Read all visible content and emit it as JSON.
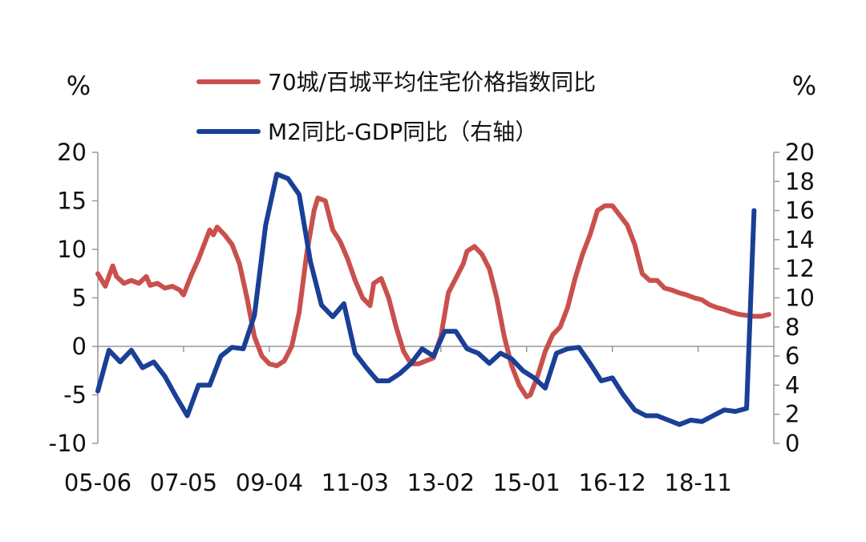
{
  "chart_data": {
    "type": "line",
    "left_unit": "%",
    "right_unit": "%",
    "x_tick_labels": [
      "05-06",
      "07-05",
      "09-04",
      "11-03",
      "13-02",
      "15-01",
      "16-12",
      "18-11"
    ],
    "x_tick_index": [
      0,
      23,
      46,
      69,
      92,
      115,
      138,
      161
    ],
    "y_left": {
      "min": -10,
      "max": 20,
      "ticks": [
        "20",
        "15",
        "10",
        "5",
        "0",
        "-5",
        "-10"
      ],
      "tick_values": [
        20,
        15,
        10,
        5,
        0,
        -5,
        -10
      ]
    },
    "y_right": {
      "min": 0,
      "max": 20,
      "ticks": [
        "20",
        "18",
        "16",
        "14",
        "12",
        "10",
        "8",
        "6",
        "4",
        "2",
        "0"
      ],
      "tick_values": [
        20,
        18,
        16,
        14,
        12,
        10,
        8,
        6,
        4,
        2,
        0
      ]
    },
    "legend_placement": "top-center",
    "series": [
      {
        "name": "70城/百城平均住宅价格指数同比",
        "color": "#C9504D",
        "axis": "left",
        "points": [
          [
            0,
            7.5
          ],
          [
            2,
            6.2
          ],
          [
            4,
            8.3
          ],
          [
            5,
            7.2
          ],
          [
            7,
            6.5
          ],
          [
            9,
            6.8
          ],
          [
            11,
            6.5
          ],
          [
            13,
            7.2
          ],
          [
            14,
            6.3
          ],
          [
            16,
            6.5
          ],
          [
            18,
            6.0
          ],
          [
            20,
            6.2
          ],
          [
            22,
            5.8
          ],
          [
            23,
            5.3
          ],
          [
            25,
            7.3
          ],
          [
            27,
            9.0
          ],
          [
            29,
            11.0
          ],
          [
            30,
            12.0
          ],
          [
            31,
            11.5
          ],
          [
            32,
            12.3
          ],
          [
            34,
            11.5
          ],
          [
            36,
            10.5
          ],
          [
            38,
            8.5
          ],
          [
            40,
            5.0
          ],
          [
            42,
            1.0
          ],
          [
            44,
            -1.0
          ],
          [
            46,
            -1.8
          ],
          [
            48,
            -2.0
          ],
          [
            50,
            -1.5
          ],
          [
            52,
            0.0
          ],
          [
            54,
            3.5
          ],
          [
            56,
            9.5
          ],
          [
            58,
            14.0
          ],
          [
            59,
            15.3
          ],
          [
            61,
            15.0
          ],
          [
            63,
            12.0
          ],
          [
            65,
            10.8
          ],
          [
            67,
            9.0
          ],
          [
            69,
            6.8
          ],
          [
            71,
            5.0
          ],
          [
            73,
            4.2
          ],
          [
            74,
            6.5
          ],
          [
            76,
            7.0
          ],
          [
            78,
            5.0
          ],
          [
            80,
            2.0
          ],
          [
            82,
            -0.5
          ],
          [
            84,
            -1.8
          ],
          [
            86,
            -1.8
          ],
          [
            88,
            -1.5
          ],
          [
            90,
            -1.2
          ],
          [
            92,
            1.0
          ],
          [
            94,
            5.5
          ],
          [
            96,
            7.0
          ],
          [
            98,
            8.5
          ],
          [
            99,
            9.8
          ],
          [
            101,
            10.3
          ],
          [
            103,
            9.5
          ],
          [
            105,
            8.0
          ],
          [
            107,
            5.0
          ],
          [
            109,
            1.0
          ],
          [
            111,
            -2.0
          ],
          [
            113,
            -4.0
          ],
          [
            115,
            -5.2
          ],
          [
            116,
            -5.0
          ],
          [
            118,
            -3.0
          ],
          [
            120,
            -0.5
          ],
          [
            122,
            1.2
          ],
          [
            124,
            2.0
          ],
          [
            126,
            4.0
          ],
          [
            128,
            7.0
          ],
          [
            130,
            9.5
          ],
          [
            132,
            11.5
          ],
          [
            134,
            14.0
          ],
          [
            136,
            14.5
          ],
          [
            138,
            14.5
          ],
          [
            140,
            13.5
          ],
          [
            142,
            12.5
          ],
          [
            144,
            10.5
          ],
          [
            146,
            7.5
          ],
          [
            148,
            6.8
          ],
          [
            150,
            6.8
          ],
          [
            152,
            6.0
          ],
          [
            154,
            5.8
          ],
          [
            156,
            5.5
          ],
          [
            158,
            5.3
          ],
          [
            160,
            5.0
          ],
          [
            162,
            4.8
          ],
          [
            164,
            4.3
          ],
          [
            166,
            4.0
          ],
          [
            168,
            3.8
          ],
          [
            170,
            3.5
          ],
          [
            172,
            3.3
          ],
          [
            174,
            3.2
          ],
          [
            176,
            3.1
          ],
          [
            178,
            3.1
          ],
          [
            180,
            3.3
          ]
        ]
      },
      {
        "name": "M2同比-GDP同比（右轴）",
        "color": "#1A3F96",
        "axis": "right",
        "points": [
          [
            0,
            3.6
          ],
          [
            3,
            6.4
          ],
          [
            6,
            5.6
          ],
          [
            9,
            6.4
          ],
          [
            12,
            5.2
          ],
          [
            15,
            5.6
          ],
          [
            18,
            4.6
          ],
          [
            21,
            3.2
          ],
          [
            24,
            1.9
          ],
          [
            27,
            4.0
          ],
          [
            30,
            4.0
          ],
          [
            33,
            6.0
          ],
          [
            36,
            6.6
          ],
          [
            39,
            6.5
          ],
          [
            42,
            8.8
          ],
          [
            45,
            15.0
          ],
          [
            48,
            18.5
          ],
          [
            51,
            18.2
          ],
          [
            54,
            17.1
          ],
          [
            57,
            12.5
          ],
          [
            60,
            9.5
          ],
          [
            63,
            8.7
          ],
          [
            66,
            9.6
          ],
          [
            69,
            6.2
          ],
          [
            72,
            5.2
          ],
          [
            75,
            4.3
          ],
          [
            78,
            4.3
          ],
          [
            81,
            4.8
          ],
          [
            84,
            5.5
          ],
          [
            87,
            6.5
          ],
          [
            90,
            6.0
          ],
          [
            93,
            7.7
          ],
          [
            96,
            7.7
          ],
          [
            99,
            6.5
          ],
          [
            102,
            6.2
          ],
          [
            105,
            5.5
          ],
          [
            108,
            6.2
          ],
          [
            111,
            5.8
          ],
          [
            114,
            5.0
          ],
          [
            117,
            4.5
          ],
          [
            120,
            3.8
          ],
          [
            123,
            6.2
          ],
          [
            126,
            6.5
          ],
          [
            129,
            6.6
          ],
          [
            132,
            5.5
          ],
          [
            135,
            4.3
          ],
          [
            138,
            4.5
          ],
          [
            141,
            3.3
          ],
          [
            144,
            2.3
          ],
          [
            147,
            1.9
          ],
          [
            150,
            1.9
          ],
          [
            153,
            1.6
          ],
          [
            156,
            1.3
          ],
          [
            159,
            1.6
          ],
          [
            162,
            1.5
          ],
          [
            165,
            1.9
          ],
          [
            168,
            2.3
          ],
          [
            171,
            2.2
          ],
          [
            174,
            2.4
          ],
          [
            176,
            16.0
          ]
        ]
      }
    ]
  }
}
